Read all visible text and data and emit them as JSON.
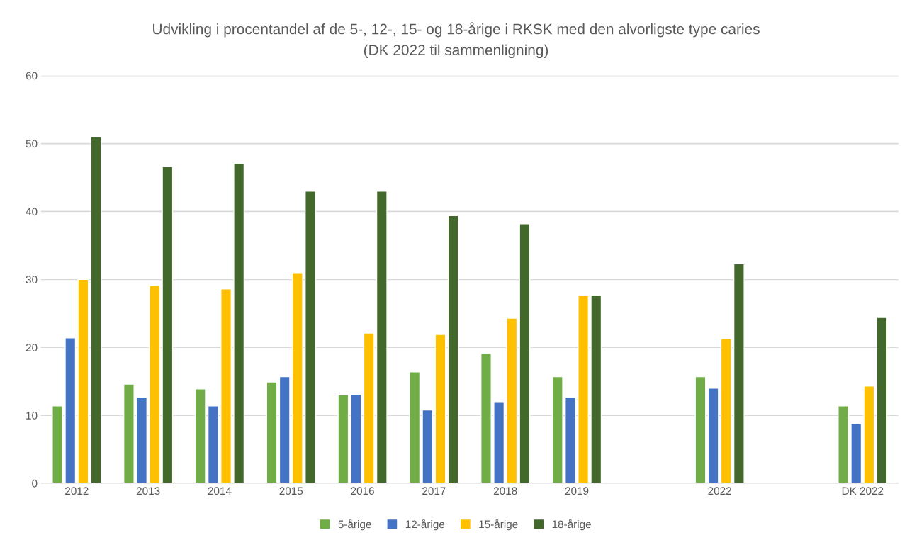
{
  "chart_data": {
    "type": "bar",
    "title": "Udvikling i procentandel af de 5-, 12-, 15- og 18-årige i RKSK med den alvorligste type caries",
    "subtitle": "(DK 2022 til sammenligning)",
    "categories": [
      "2012",
      "2013",
      "2014",
      "2015",
      "2016",
      "2017",
      "2018",
      "2019",
      null,
      "2022",
      null,
      "DK 2022"
    ],
    "series": [
      {
        "name": "5-årige",
        "color": "#70ad47",
        "values": [
          11.4,
          14.6,
          13.9,
          14.9,
          13.0,
          16.4,
          19.1,
          15.7,
          null,
          15.7,
          null,
          11.4
        ]
      },
      {
        "name": "12-årige",
        "color": "#4472c4",
        "values": [
          21.4,
          12.7,
          11.4,
          15.7,
          13.1,
          10.8,
          12.0,
          12.7,
          null,
          14.0,
          null,
          8.8
        ]
      },
      {
        "name": "15-årige",
        "color": "#ffc000",
        "values": [
          30.0,
          29.1,
          28.6,
          31.0,
          22.1,
          21.9,
          24.3,
          27.6,
          null,
          21.3,
          null,
          14.3
        ]
      },
      {
        "name": "18-årige",
        "color": "#43682b",
        "values": [
          51.0,
          46.6,
          47.1,
          43.0,
          43.0,
          39.4,
          38.2,
          27.7,
          null,
          32.3,
          null,
          24.4
        ]
      }
    ],
    "ylim": [
      0,
      60
    ],
    "yticks": [
      0,
      10,
      20,
      30,
      40,
      50,
      60
    ],
    "grid": "y",
    "legend": "bottom"
  }
}
